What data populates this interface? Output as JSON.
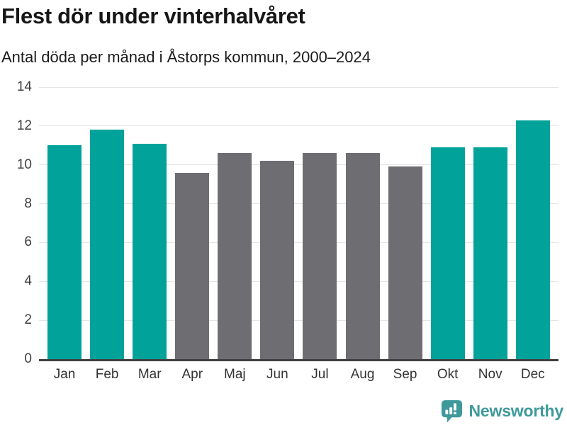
{
  "header": {
    "title": "Flest dör under vinterhalvåret",
    "subtitle": "Antal döda per månad i Åstorps kommun, 2000–2024"
  },
  "chart_data": {
    "type": "bar",
    "title": "Flest dör under vinterhalvåret",
    "subtitle": "Antal döda per månad i Åstorps kommun, 2000–2024",
    "categories": [
      "Jan",
      "Feb",
      "Mar",
      "Apr",
      "Maj",
      "Jun",
      "Jul",
      "Aug",
      "Sep",
      "Okt",
      "Nov",
      "Dec"
    ],
    "values": [
      11.0,
      11.8,
      11.1,
      9.6,
      10.6,
      10.2,
      10.6,
      10.6,
      9.9,
      10.9,
      10.9,
      12.3
    ],
    "highlighted": [
      true,
      true,
      true,
      false,
      false,
      false,
      false,
      false,
      false,
      true,
      true,
      true
    ],
    "highlight_color": "#00A29A",
    "base_color": "#6E6E72",
    "xlabel": "",
    "ylabel": "",
    "ylim": [
      0,
      14
    ],
    "yticks": [
      0,
      2,
      4,
      6,
      8,
      10,
      12,
      14
    ],
    "grid": true,
    "legend_position": "none"
  },
  "branding": {
    "logo_text": "Newsworthy",
    "logo_color": "#3F999B",
    "logo_icon": "speech-bubble-bar-chart-icon"
  }
}
